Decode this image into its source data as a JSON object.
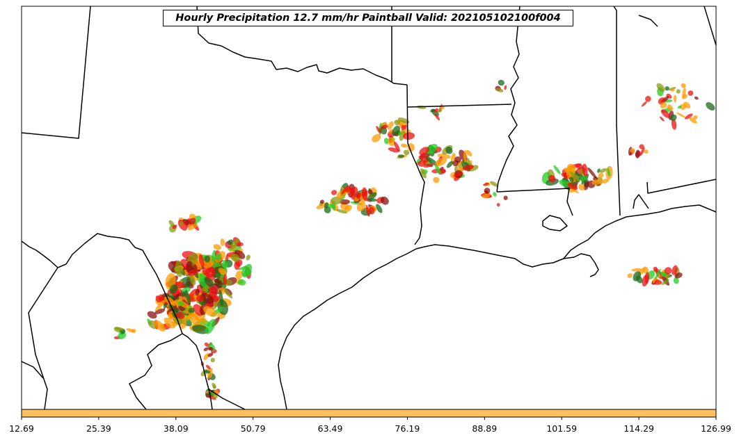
{
  "title": "Hourly Precipitation 12.7 mm/hr Paintball Valid: 202105102100f004",
  "colorbar": {
    "color": "#ffc060",
    "ticks": [
      "12.69",
      "25.39",
      "38.09",
      "50.79",
      "63.49",
      "76.19",
      "88.89",
      "101.59",
      "114.29",
      "126.99"
    ]
  },
  "colors": {
    "green": "#22cc22",
    "red": "#ee1111",
    "orange": "#ff9900",
    "olive": "#8a9a10",
    "dark_red": "#8b1010",
    "dark_green": "#1a6a1a",
    "dark_gray": "#333333"
  }
}
